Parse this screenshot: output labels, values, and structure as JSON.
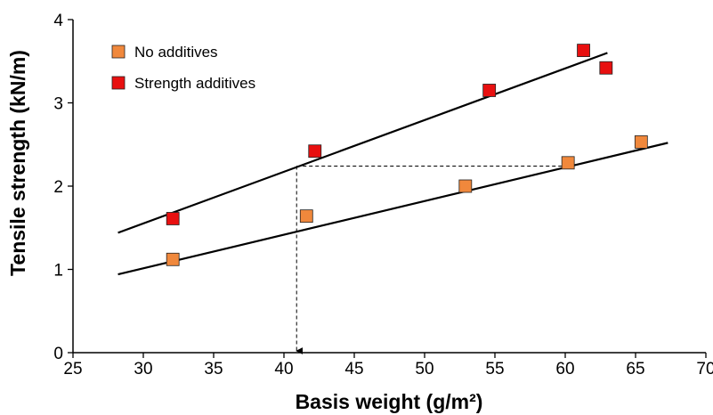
{
  "chart_data": {
    "type": "scatter",
    "title": "",
    "xlabel": "Basis weight (g/m²)",
    "ylabel": "Tensile strength (kN/m)",
    "xlim": [
      25,
      70
    ],
    "ylim": [
      0,
      4
    ],
    "xticks": [
      25,
      30,
      35,
      40,
      45,
      50,
      55,
      60,
      65,
      70
    ],
    "yticks": [
      0,
      1,
      2,
      3,
      4
    ],
    "grid": false,
    "legend_position": "top-left",
    "series": [
      {
        "name": "No additives",
        "color": "#f0883c",
        "marker": "square",
        "points": [
          {
            "x": 32.1,
            "y": 1.12
          },
          {
            "x": 41.6,
            "y": 1.64
          },
          {
            "x": 52.9,
            "y": 2.0
          },
          {
            "x": 60.2,
            "y": 2.28
          },
          {
            "x": 65.4,
            "y": 2.53
          }
        ],
        "trend_line": {
          "x": [
            28.2,
            67.3
          ],
          "y": [
            0.94,
            2.52
          ]
        }
      },
      {
        "name": "Strength additives",
        "color": "#e81010",
        "marker": "square",
        "points": [
          {
            "x": 32.1,
            "y": 1.61
          },
          {
            "x": 42.2,
            "y": 2.42
          },
          {
            "x": 54.6,
            "y": 3.15
          },
          {
            "x": 61.3,
            "y": 3.63
          },
          {
            "x": 62.9,
            "y": 3.42
          }
        ],
        "trend_line": {
          "x": [
            28.2,
            63.0
          ],
          "y": [
            1.44,
            3.6
          ]
        }
      }
    ],
    "annotations": [
      {
        "type": "dashed-horizontal",
        "x": [
          40.9,
          60.2
        ],
        "y": 2.24
      },
      {
        "type": "dashed-vertical-arrow",
        "x": 40.9,
        "y": [
          2.24,
          0
        ]
      }
    ]
  }
}
